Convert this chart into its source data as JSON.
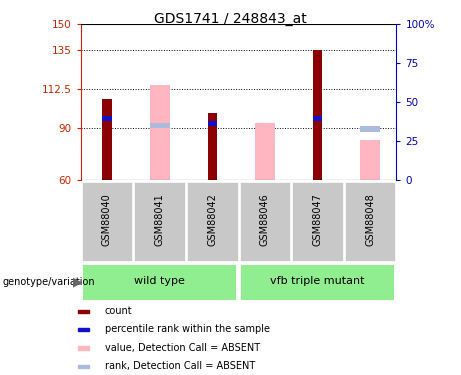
{
  "title": "GDS1741 / 248843_at",
  "samples": [
    "GSM88040",
    "GSM88041",
    "GSM88042",
    "GSM88046",
    "GSM88047",
    "GSM88048"
  ],
  "ylim_left": [
    60,
    150
  ],
  "ylim_right": [
    0,
    100
  ],
  "yticks_left": [
    60,
    90,
    112.5,
    135,
    150
  ],
  "yticks_right": [
    0,
    25,
    50,
    75,
    100
  ],
  "ytick_labels_left": [
    "60",
    "90",
    "112.5",
    "135",
    "150"
  ],
  "ytick_labels_right": [
    "0",
    "25",
    "50",
    "75",
    "100%"
  ],
  "red_bar_top": [
    107,
    60,
    99,
    60,
    135,
    60
  ],
  "blue_bar_top": [
    97,
    60,
    94,
    60,
    97,
    60
  ],
  "blue_bar_bot": [
    94,
    60,
    91,
    60,
    94,
    60
  ],
  "pink_bar_top": [
    60,
    115,
    60,
    93,
    60,
    83
  ],
  "pink_bar_bot": [
    60,
    60,
    60,
    60,
    60,
    60
  ],
  "lblu_bar_top": [
    60,
    93,
    60,
    60,
    60,
    91
  ],
  "lblu_bar_bot": [
    60,
    90,
    60,
    60,
    60,
    88
  ],
  "color_red": "#8B0000",
  "color_blue": "#1010CC",
  "color_pink": "#FFB6C1",
  "color_lblu": "#AABBDD",
  "color_left_ax": "#CC2200",
  "color_rght_ax": "#0000BB",
  "color_gray_bg": "#C8C8C8",
  "color_green_bg": "#90EE90",
  "hline_vals": [
    90,
    112.5,
    135
  ],
  "wild_type_idx": [
    0,
    1,
    2
  ],
  "mutant_idx": [
    3,
    4,
    5
  ],
  "legend_labels": [
    "count",
    "percentile rank within the sample",
    "value, Detection Call = ABSENT",
    "rank, Detection Call = ABSENT"
  ],
  "legend_colors": [
    "#8B0000",
    "#1010CC",
    "#FFB6C1",
    "#AABBDD"
  ]
}
